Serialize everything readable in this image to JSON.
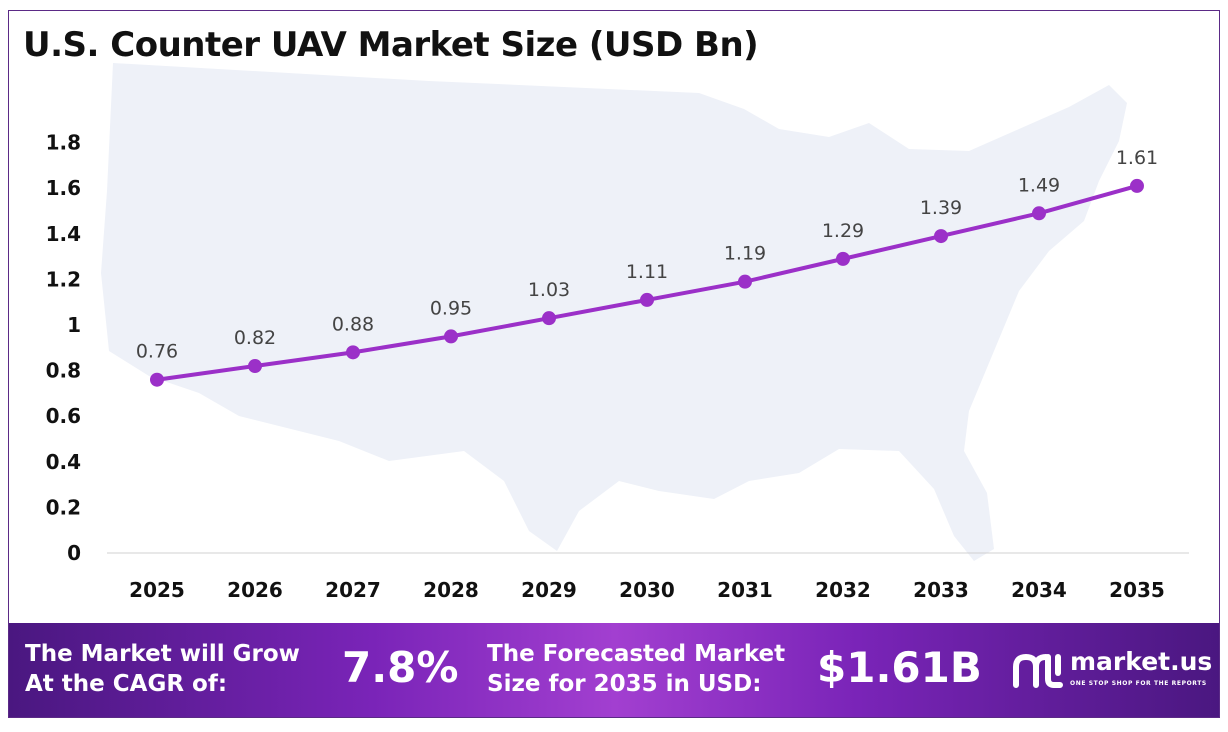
{
  "header": {
    "title": "U.S. Counter UAV Market Size (USD Bn)"
  },
  "chart_data": {
    "type": "line",
    "title": "U.S. Counter UAV Market Size (USD Bn)",
    "xlabel": "",
    "ylabel": "",
    "categories": [
      "2025",
      "2026",
      "2027",
      "2028",
      "2029",
      "2030",
      "2031",
      "2032",
      "2033",
      "2034",
      "2035"
    ],
    "series": [
      {
        "values": [
          0.76,
          0.82,
          0.88,
          0.95,
          1.03,
          1.11,
          1.19,
          1.29,
          1.39,
          1.49,
          1.61
        ],
        "color": "#9b30c8"
      }
    ],
    "data_labels": [
      "0.76",
      "0.82",
      "0.88",
      "0.95",
      "1.03",
      "1.11",
      "1.19",
      "1.29",
      "1.39",
      "1.49",
      "1.61"
    ],
    "y_ticks": [
      "0",
      "0.2",
      "0.4",
      "0.6",
      "0.8",
      "1",
      "1.2",
      "1.4",
      "1.6",
      "1.8"
    ],
    "ylim": [
      0,
      1.8
    ],
    "grid": false,
    "legend": "none",
    "background_image": "us-map-silhouette"
  },
  "footer": {
    "cagr_label_line1": "The Market will Grow",
    "cagr_label_line2": "At the CAGR of:",
    "cagr_value": "7.8%",
    "forecast_label_line1": "The Forecasted Market",
    "forecast_label_line2": "Size for 2035 in USD:",
    "forecast_value": "$1.61B",
    "brand_name": "market.us",
    "brand_tagline": "ONE STOP SHOP FOR THE REPORTS"
  },
  "colors": {
    "line": "#9b30c8",
    "footer_start": "#4a1780",
    "footer_mid": "#a23fd0",
    "map_fill": "#eef1f8",
    "frame_border": "#5b2a86"
  }
}
